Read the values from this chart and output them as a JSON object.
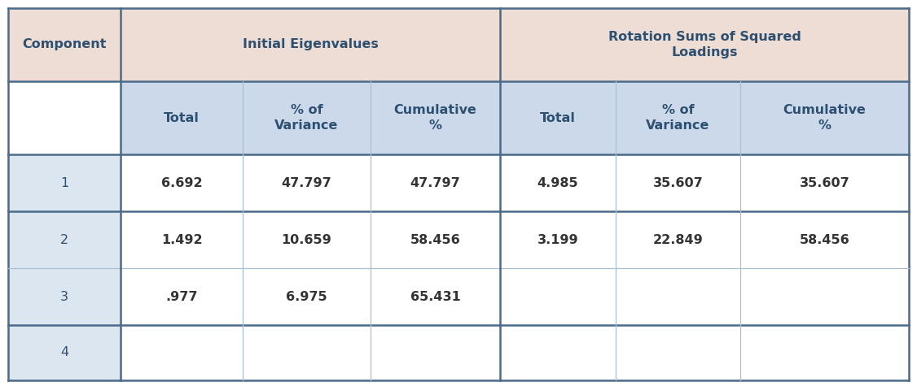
{
  "col_header_row1": [
    "Component",
    "Initial Eigenvalues",
    "Rotation Sums of Squared\nLoadings"
  ],
  "col_header_row2_sub": [
    "Total",
    "% of\nVariance",
    "Cumulative\n%",
    "Total",
    "% of\nVariance",
    "Cumulative\n%"
  ],
  "rows": [
    [
      "1",
      "6.692",
      "47.797",
      "47.797",
      "4.985",
      "35.607",
      "35.607"
    ],
    [
      "2",
      "1.492",
      "10.659",
      "58.456",
      "3.199",
      "22.849",
      "58.456"
    ],
    [
      "3",
      ".977",
      "6.975",
      "65.431",
      "",
      "",
      ""
    ],
    [
      "4",
      "",
      "",
      "",
      "",
      "",
      ""
    ]
  ],
  "header1_bg": "#edddd4",
  "header2_bg": "#ccd9ea",
  "component_h1_bg": "#edddd4",
  "component_h2_bg": "#ffffff",
  "component_data_bg": "#dce6f1",
  "data_bg": "#ffffff",
  "border_color_dark": "#4a6a8a",
  "border_color_light": "#a8bfd4",
  "text_color_header": "#2e5070",
  "text_color_data": "#2e5070",
  "font_size": 11.5
}
